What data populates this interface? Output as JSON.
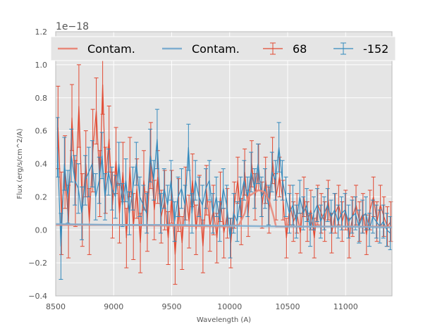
{
  "chart_data": {
    "type": "line",
    "xlabel": "Wavelength (A)",
    "ylabel": "Flux (erg/s/cm^2/A)",
    "offset_text": "1e−18",
    "xlim": [
      8500,
      11400
    ],
    "ylim": [
      -0.4,
      1.2
    ],
    "xticks": [
      8500,
      9000,
      9500,
      10000,
      10500,
      11000
    ],
    "xtick_labels": [
      "8500",
      "9000",
      "9500",
      "10000",
      "10500",
      "11000"
    ],
    "yticks": [
      -0.4,
      -0.2,
      0.0,
      0.2,
      0.4,
      0.6,
      0.8,
      1.0,
      1.2
    ],
    "ytick_labels": [
      "−0.4",
      "−0.2",
      "0.0",
      "0.2",
      "0.4",
      "0.6",
      "0.8",
      "1.0",
      "1.2"
    ],
    "grid": true,
    "legend": {
      "position": "top",
      "entries": [
        {
          "label": "Contam.",
          "kind": "line",
          "color": "#E8887A"
        },
        {
          "label": "Contam.",
          "kind": "line",
          "color": "#7FAED0"
        },
        {
          "label": "68",
          "kind": "errorbar",
          "color": "#E24A33"
        },
        {
          "label": "-152",
          "kind": "errorbar",
          "color": "#348ABD"
        }
      ]
    },
    "series": [
      {
        "name": "68",
        "kind": "errorbar",
        "color": "#E24A33",
        "x": [
          8520,
          8550,
          8580,
          8610,
          8640,
          8670,
          8700,
          8730,
          8760,
          8790,
          8820,
          8850,
          8880,
          8905,
          8930,
          8960,
          8990,
          9020,
          9050,
          9080,
          9110,
          9140,
          9170,
          9200,
          9230,
          9260,
          9290,
          9320,
          9350,
          9380,
          9410,
          9440,
          9470,
          9500,
          9530,
          9560,
          9590,
          9620,
          9650,
          9680,
          9710,
          9740,
          9770,
          9800,
          9830,
          9860,
          9890,
          9920,
          9950,
          9980,
          10010,
          10040,
          10070,
          10100,
          10130,
          10160,
          10190,
          10220,
          10250,
          10280,
          10310,
          10340,
          10370,
          10400,
          10430,
          10460,
          10490,
          10520,
          10550,
          10580,
          10610,
          10640,
          10670,
          10700,
          10730,
          10760,
          10790,
          10820,
          10850,
          10880,
          10910,
          10940,
          10970,
          11000,
          11030,
          11060,
          11090,
          11120,
          11150,
          11180,
          11210,
          11240,
          11270,
          11300,
          11330,
          11360,
          11390
        ],
        "y": [
          0.62,
          0.1,
          0.35,
          0.05,
          0.68,
          0.22,
          0.75,
          0.12,
          0.4,
          0.05,
          0.48,
          0.72,
          0.28,
          0.88,
          0.3,
          0.55,
          0.15,
          0.42,
          0.1,
          0.35,
          -0.05,
          0.38,
          0.02,
          0.25,
          -0.08,
          0.3,
          0.05,
          0.45,
          0.12,
          0.32,
          0.08,
          0.18,
          -0.05,
          0.2,
          -0.15,
          0.15,
          -0.08,
          0.22,
          0.05,
          0.3,
          0.0,
          0.18,
          -0.1,
          0.24,
          0.02,
          0.12,
          -0.05,
          0.2,
          -0.02,
          0.1,
          -0.08,
          0.15,
          0.3,
          0.05,
          0.35,
          0.1,
          0.4,
          0.2,
          0.38,
          0.15,
          0.3,
          0.12,
          0.42,
          0.2,
          0.32,
          0.18,
          -0.05,
          0.15,
          0.05,
          0.1,
          -0.02,
          0.2,
          0.05,
          0.12,
          -0.05,
          0.15,
          0.1,
          0.05,
          0.18,
          -0.02,
          0.1,
          0.15,
          0.05,
          0.12,
          -0.05,
          0.08,
          0.15,
          0.05,
          0.1,
          -0.03,
          0.12,
          0.2,
          0.05,
          0.15,
          0.08,
          0.02,
          0.05
        ],
        "err": [
          0.25,
          0.25,
          0.22,
          0.22,
          0.2,
          0.2,
          0.25,
          0.22,
          0.2,
          0.2,
          0.25,
          0.2,
          0.2,
          0.18,
          0.2,
          0.2,
          0.2,
          0.2,
          0.18,
          0.18,
          0.18,
          0.18,
          0.2,
          0.18,
          0.18,
          0.18,
          0.18,
          0.2,
          0.18,
          0.16,
          0.16,
          0.18,
          0.16,
          0.16,
          0.18,
          0.16,
          0.16,
          0.16,
          0.16,
          0.16,
          0.15,
          0.15,
          0.16,
          0.15,
          0.15,
          0.15,
          0.15,
          0.15,
          0.15,
          0.15,
          0.15,
          0.14,
          0.14,
          0.14,
          0.14,
          0.14,
          0.14,
          0.14,
          0.14,
          0.14,
          0.14,
          0.14,
          0.14,
          0.14,
          0.12,
          0.12,
          0.12,
          0.12,
          0.12,
          0.12,
          0.12,
          0.12,
          0.12,
          0.12,
          0.12,
          0.12,
          0.12,
          0.12,
          0.12,
          0.12,
          0.12,
          0.12,
          0.12,
          0.12,
          0.12,
          0.12,
          0.12,
          0.12,
          0.12,
          0.12,
          0.12,
          0.12,
          0.12,
          0.12,
          0.12,
          0.12,
          0.12
        ]
      },
      {
        "name": "-152",
        "kind": "errorbar",
        "color": "#348ABD",
        "x": [
          8515,
          8545,
          8575,
          8605,
          8635,
          8665,
          8695,
          8725,
          8755,
          8785,
          8815,
          8845,
          8875,
          8900,
          8925,
          8955,
          8985,
          9015,
          9045,
          9075,
          9105,
          9135,
          9165,
          9195,
          9225,
          9255,
          9285,
          9315,
          9345,
          9375,
          9405,
          9435,
          9465,
          9495,
          9525,
          9555,
          9585,
          9615,
          9645,
          9675,
          9705,
          9735,
          9765,
          9795,
          9825,
          9855,
          9885,
          9915,
          9945,
          9975,
          10005,
          10035,
          10065,
          10095,
          10125,
          10155,
          10185,
          10215,
          10245,
          10275,
          10305,
          10335,
          10365,
          10395,
          10425,
          10455,
          10485,
          10515,
          10545,
          10575,
          10605,
          10635,
          10665,
          10695,
          10725,
          10755,
          10785,
          10815,
          10845,
          10875,
          10905,
          10935,
          10965,
          10995,
          11025,
          11055,
          11085,
          11115,
          11145,
          11175,
          11205,
          11235,
          11265,
          11295,
          11325,
          11355,
          11385
        ],
        "y": [
          0.5,
          -0.1,
          0.4,
          0.2,
          0.45,
          0.3,
          0.25,
          0.1,
          0.3,
          0.35,
          0.4,
          0.2,
          0.3,
          0.45,
          0.2,
          0.35,
          0.25,
          0.2,
          0.4,
          0.15,
          0.3,
          0.1,
          0.25,
          0.4,
          0.2,
          0.15,
          0.1,
          0.45,
          0.3,
          0.55,
          0.1,
          0.25,
          0.15,
          0.3,
          0.05,
          0.2,
          0.25,
          0.15,
          0.5,
          0.1,
          0.3,
          0.2,
          0.15,
          0.25,
          0.3,
          0.1,
          0.2,
          0.05,
          0.25,
          0.15,
          -0.05,
          0.1,
          0.05,
          0.2,
          0.3,
          0.2,
          0.35,
          0.25,
          0.4,
          0.2,
          0.25,
          0.15,
          0.35,
          0.3,
          0.5,
          0.3,
          0.2,
          0.1,
          0.15,
          0.05,
          0.2,
          0.1,
          0.15,
          0.0,
          0.1,
          0.15,
          0.05,
          0.1,
          0.15,
          0.08,
          0.12,
          0.05,
          0.1,
          0.12,
          0.05,
          0.08,
          0.1,
          0.02,
          0.08,
          0.1,
          0.0,
          0.08,
          0.05,
          0.02,
          0.05,
          0.0,
          -0.02
        ],
        "err": [
          0.18,
          0.2,
          0.16,
          0.16,
          0.16,
          0.15,
          0.15,
          0.16,
          0.15,
          0.15,
          0.14,
          0.14,
          0.14,
          0.14,
          0.14,
          0.14,
          0.13,
          0.13,
          0.13,
          0.13,
          0.13,
          0.13,
          0.13,
          0.13,
          0.12,
          0.12,
          0.12,
          0.16,
          0.12,
          0.18,
          0.12,
          0.12,
          0.12,
          0.12,
          0.12,
          0.12,
          0.12,
          0.12,
          0.14,
          0.12,
          0.12,
          0.12,
          0.12,
          0.12,
          0.12,
          0.12,
          0.12,
          0.12,
          0.12,
          0.12,
          0.12,
          0.12,
          0.12,
          0.12,
          0.12,
          0.12,
          0.12,
          0.12,
          0.12,
          0.12,
          0.12,
          0.12,
          0.12,
          0.12,
          0.15,
          0.12,
          0.12,
          0.12,
          0.12,
          0.1,
          0.1,
          0.1,
          0.1,
          0.1,
          0.1,
          0.1,
          0.1,
          0.1,
          0.1,
          0.1,
          0.1,
          0.1,
          0.1,
          0.1,
          0.1,
          0.1,
          0.1,
          0.1,
          0.1,
          0.1,
          0.1,
          0.1,
          0.1,
          0.1,
          0.1,
          0.1,
          0.1
        ]
      },
      {
        "name": "Contam.",
        "kind": "line",
        "color": "#E8887A",
        "x": [
          8500,
          9000,
          9500,
          10000,
          10080,
          10130,
          10160,
          10200,
          10250,
          10300,
          10340,
          10380,
          10400,
          11000,
          11400
        ],
        "y": [
          0.03,
          0.03,
          0.025,
          0.02,
          0.03,
          0.1,
          0.2,
          0.22,
          0.24,
          0.23,
          0.18,
          0.08,
          0.02,
          0.02,
          0.02
        ]
      },
      {
        "name": "Contam.",
        "kind": "line",
        "color": "#7FAED0",
        "x": [
          8500,
          9000,
          9500,
          10000,
          10500,
          11000,
          11400
        ],
        "y": [
          0.035,
          0.03,
          0.03,
          0.025,
          0.02,
          0.02,
          0.015
        ]
      }
    ]
  }
}
